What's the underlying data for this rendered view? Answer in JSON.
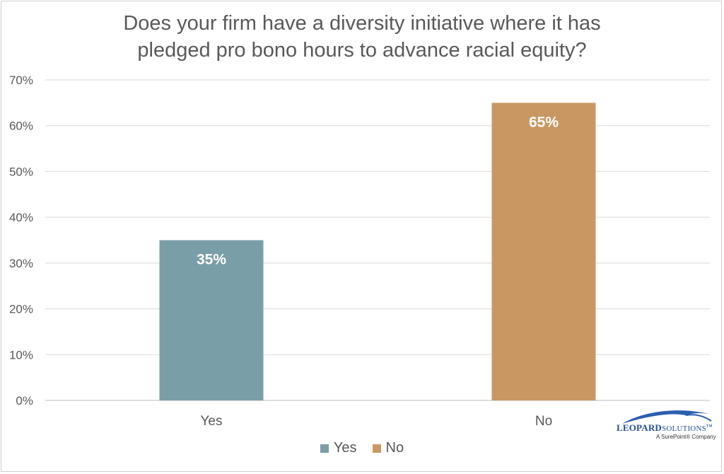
{
  "chart_data": {
    "type": "bar",
    "title_lines": [
      "Does your firm have a diversity initiative where it has",
      "pledged pro bono hours to advance racial equity?"
    ],
    "categories": [
      "Yes",
      "No"
    ],
    "values": [
      35,
      65
    ],
    "data_labels": [
      "35%",
      "65%"
    ],
    "colors": [
      "#7a9ea8",
      "#c99862"
    ],
    "ylim": [
      0,
      70
    ],
    "yticks": [
      0,
      10,
      20,
      30,
      40,
      50,
      60,
      70
    ],
    "ytick_labels": [
      "0%",
      "10%",
      "20%",
      "30%",
      "40%",
      "50%",
      "60%",
      "70%"
    ],
    "grid": true,
    "legend_position": "bottom",
    "legend": [
      {
        "label": "Yes",
        "color": "#7a9ea8"
      },
      {
        "label": "No",
        "color": "#c99862"
      }
    ]
  },
  "logo": {
    "word_bold": "LEOPARD",
    "word_light": "SOLUTIONS",
    "tm": "TM",
    "tagline": "A SurePoint® Company",
    "color": "#1f4e9a"
  }
}
